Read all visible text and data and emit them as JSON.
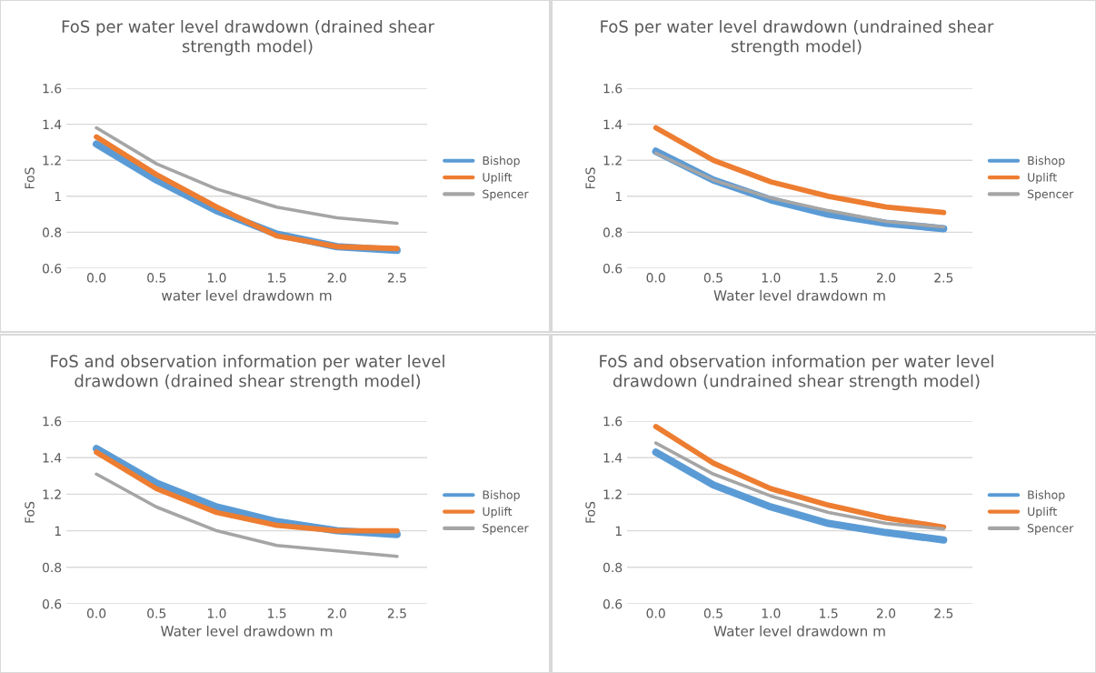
{
  "chart_data": [
    {
      "type": "line",
      "title": "FoS per water level drawdown (drained shear strength model)",
      "xlabel": "water level drawdown m",
      "ylabel": "FoS",
      "categories": [
        "0.0",
        "0.5",
        "1.0",
        "1.5",
        "2.0",
        "2.5"
      ],
      "ylim": [
        0.6,
        1.6
      ],
      "yticks": [
        0.6,
        0.8,
        1,
        1.2,
        1.4,
        1.6
      ],
      "grid": "y",
      "legend": "right",
      "series": [
        {
          "name": "Bishop",
          "color": "#5b9bd5",
          "values": [
            1.29,
            1.09,
            0.92,
            0.79,
            0.72,
            0.7
          ]
        },
        {
          "name": "Uplift",
          "color": "#ed7d31",
          "values": [
            1.33,
            1.12,
            0.94,
            0.78,
            0.72,
            0.71
          ]
        },
        {
          "name": "Spencer",
          "color": "#a5a5a5",
          "values": [
            1.38,
            1.18,
            1.04,
            0.94,
            0.88,
            0.85
          ]
        }
      ]
    },
    {
      "type": "line",
      "title": "FoS per water level drawdown (undrained shear strength model)",
      "xlabel": "Water level drawdown m",
      "ylabel": "FoS",
      "categories": [
        "0.0",
        "0.5",
        "1.0",
        "1.5",
        "2.0",
        "2.5"
      ],
      "ylim": [
        0.6,
        1.6
      ],
      "yticks": [
        0.6,
        0.8,
        1,
        1.2,
        1.4,
        1.6
      ],
      "grid": "y",
      "legend": "right",
      "series": [
        {
          "name": "Bishop",
          "color": "#5b9bd5",
          "values": [
            1.25,
            1.09,
            0.98,
            0.9,
            0.85,
            0.82
          ]
        },
        {
          "name": "Uplift",
          "color": "#ed7d31",
          "values": [
            1.38,
            1.2,
            1.08,
            1.0,
            0.94,
            0.91
          ]
        },
        {
          "name": "Spencer",
          "color": "#a5a5a5",
          "values": [
            1.24,
            1.09,
            0.99,
            0.92,
            0.86,
            0.83
          ]
        }
      ]
    },
    {
      "type": "line",
      "title": "FoS and observation information per water level drawdown (drained shear strength model)",
      "xlabel": "Water level drawdown m",
      "ylabel": "FoS",
      "categories": [
        "0.0",
        "0.5",
        "1.0",
        "1.5",
        "2.0",
        "2.5"
      ],
      "ylim": [
        0.6,
        1.6
      ],
      "yticks": [
        0.6,
        0.8,
        1,
        1.2,
        1.4,
        1.6
      ],
      "grid": "y",
      "legend": "right",
      "series": [
        {
          "name": "Bishop",
          "color": "#5b9bd5",
          "values": [
            1.45,
            1.26,
            1.13,
            1.05,
            1.0,
            0.98
          ]
        },
        {
          "name": "Uplift",
          "color": "#ed7d31",
          "values": [
            1.43,
            1.23,
            1.1,
            1.03,
            1.0,
            1.0
          ]
        },
        {
          "name": "Spencer",
          "color": "#a5a5a5",
          "values": [
            1.31,
            1.13,
            1.0,
            0.92,
            0.89,
            0.86
          ]
        }
      ]
    },
    {
      "type": "line",
      "title": "FoS and observation information per water level drawdown (undrained shear strength model)",
      "xlabel": "Water level drawdown m",
      "ylabel": "FoS",
      "categories": [
        "0.0",
        "0.5",
        "1.0",
        "1.5",
        "2.0",
        "2.5"
      ],
      "ylim": [
        0.6,
        1.6
      ],
      "yticks": [
        0.6,
        0.8,
        1,
        1.2,
        1.4,
        1.6
      ],
      "grid": "y",
      "legend": "right",
      "series": [
        {
          "name": "Bishop",
          "color": "#5b9bd5",
          "values": [
            1.43,
            1.25,
            1.13,
            1.04,
            0.99,
            0.95
          ]
        },
        {
          "name": "Uplift",
          "color": "#ed7d31",
          "values": [
            1.57,
            1.37,
            1.23,
            1.14,
            1.07,
            1.02
          ]
        },
        {
          "name": "Spencer",
          "color": "#a5a5a5",
          "values": [
            1.48,
            1.31,
            1.19,
            1.1,
            1.04,
            1.01
          ]
        }
      ]
    }
  ]
}
